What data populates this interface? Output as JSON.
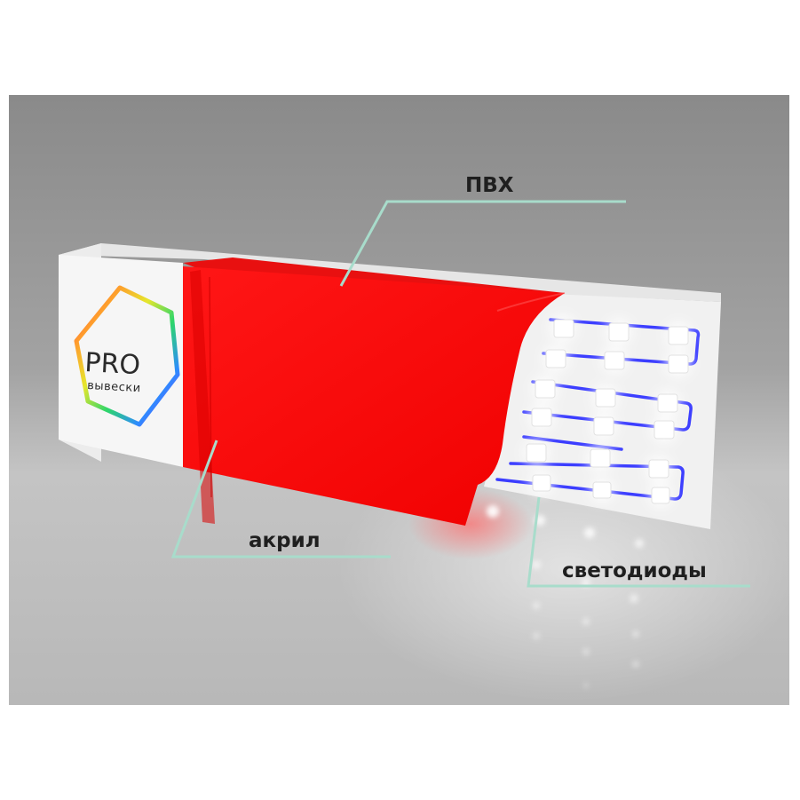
{
  "logo": {
    "title": "PRO",
    "subtitle": "вывески"
  },
  "callouts": [
    {
      "id": "pvc",
      "label": "ПВХ"
    },
    {
      "id": "acrylic",
      "label": "акрил"
    },
    {
      "id": "leds",
      "label": "светодиоды"
    }
  ],
  "colors": {
    "background": "#898989",
    "floor": "#c9c9c9",
    "acrylic_face": "#ff0c0c",
    "acrylic_top": "#f01010",
    "callout_line": "#a8dccb",
    "wire": "#3a3cff",
    "led": "#ffffff",
    "sign_body": "#f2f2f2"
  }
}
